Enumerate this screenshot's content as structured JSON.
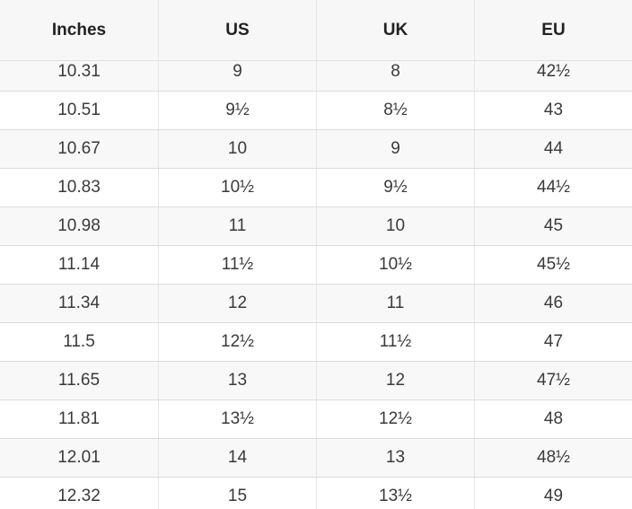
{
  "table": {
    "headers": [
      "Inches",
      "US",
      "UK",
      "EU"
    ],
    "rows": [
      [
        "10.31",
        "9",
        "8",
        "42½"
      ],
      [
        "10.51",
        "9½",
        "8½",
        "43"
      ],
      [
        "10.67",
        "10",
        "9",
        "44"
      ],
      [
        "10.83",
        "10½",
        "9½",
        "44½"
      ],
      [
        "10.98",
        "11",
        "10",
        "45"
      ],
      [
        "11.14",
        "11½",
        "10½",
        "45½"
      ],
      [
        "11.34",
        "12",
        "11",
        "46"
      ],
      [
        "11.5",
        "12½",
        "11½",
        "47"
      ],
      [
        "11.65",
        "13",
        "12",
        "47½"
      ],
      [
        "11.81",
        "13½",
        "12½",
        "48"
      ],
      [
        "12.01",
        "14",
        "13",
        "48½"
      ],
      [
        "12.32",
        "15",
        "13½",
        "49"
      ]
    ]
  }
}
